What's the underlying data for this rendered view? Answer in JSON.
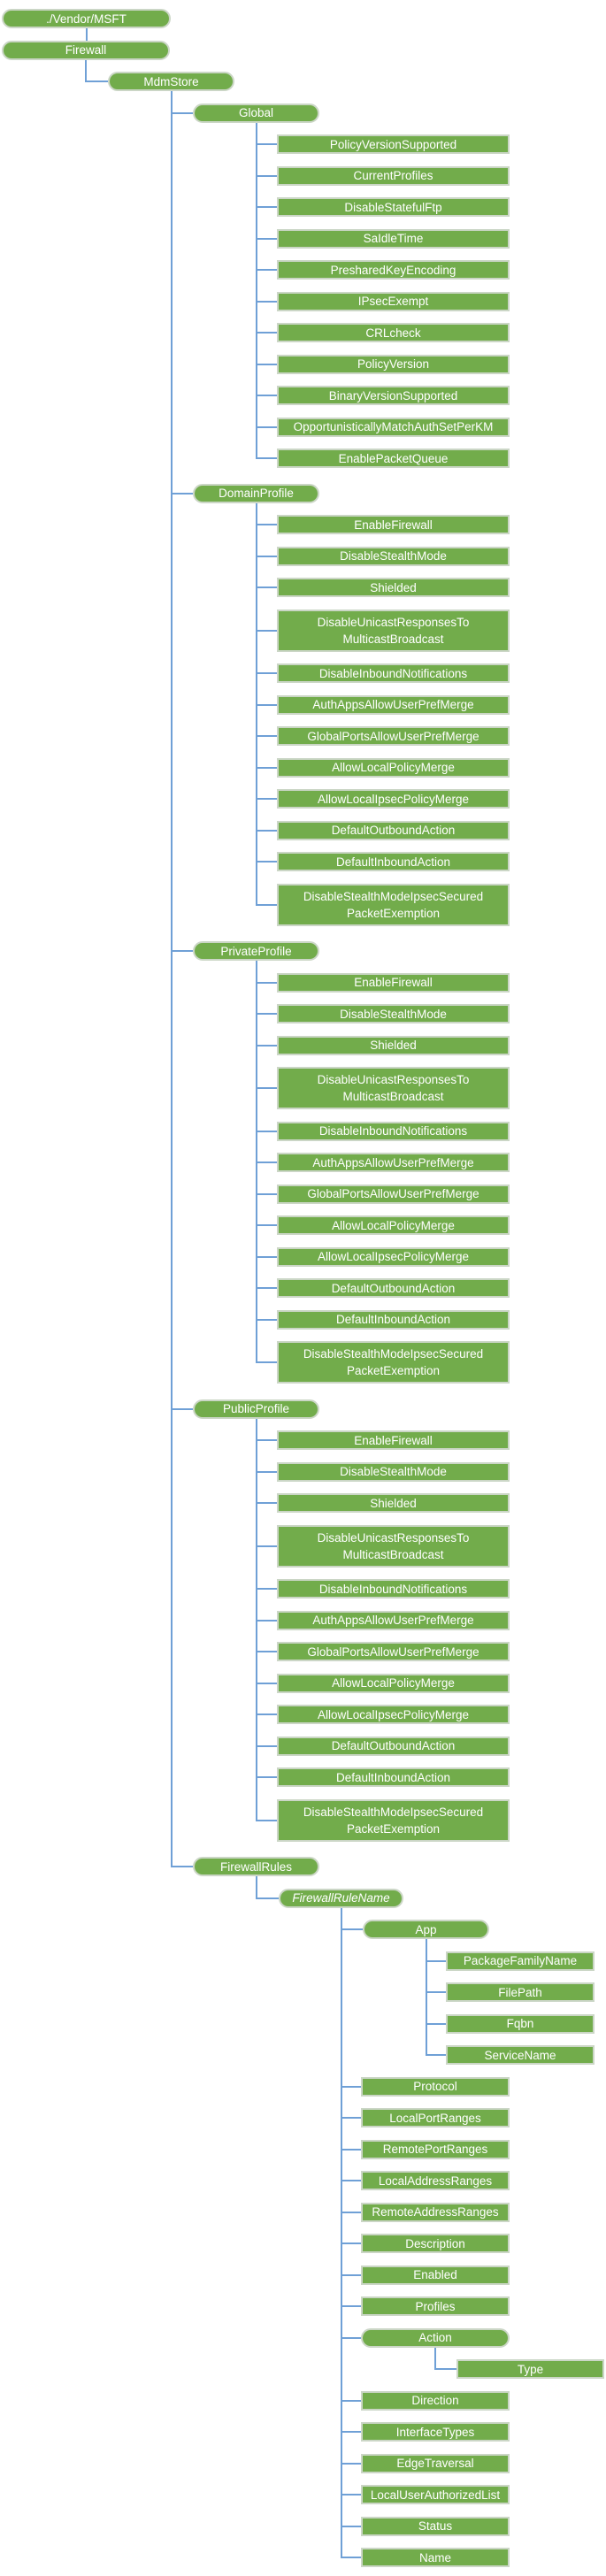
{
  "diagram_type": "csp-node-tree",
  "colors": {
    "node_fill": "#72AC4B",
    "node_border": "#CBD6C6",
    "node_text": "#FFFFFF",
    "connector": "#6FA0D6"
  },
  "tree": {
    "label": "./Vendor/MSFT",
    "shape": "pill",
    "children": [
      {
        "label": "Firewall",
        "shape": "pill",
        "children": [
          {
            "label": "MdmStore",
            "shape": "pill",
            "children": [
              {
                "label": "Global",
                "shape": "pill",
                "children": [
                  {
                    "label": "PolicyVersionSupported",
                    "shape": "rect"
                  },
                  {
                    "label": "CurrentProfiles",
                    "shape": "rect"
                  },
                  {
                    "label": "DisableStatefulFtp",
                    "shape": "rect"
                  },
                  {
                    "label": "SaIdleTime",
                    "shape": "rect"
                  },
                  {
                    "label": "PresharedKeyEncoding",
                    "shape": "rect"
                  },
                  {
                    "label": "IPsecExempt",
                    "shape": "rect"
                  },
                  {
                    "label": "CRLcheck",
                    "shape": "rect"
                  },
                  {
                    "label": "PolicyVersion",
                    "shape": "rect"
                  },
                  {
                    "label": "BinaryVersionSupported",
                    "shape": "rect"
                  },
                  {
                    "label": "OpportunisticallyMatchAuthSetPerKM",
                    "shape": "rect"
                  },
                  {
                    "label": "EnablePacketQueue",
                    "shape": "rect"
                  }
                ]
              },
              {
                "label": "DomainProfile",
                "shape": "pill",
                "children": [
                  {
                    "label": "EnableFirewall",
                    "shape": "rect"
                  },
                  {
                    "label": "DisableStealthMode",
                    "shape": "rect"
                  },
                  {
                    "label": "Shielded",
                    "shape": "rect"
                  },
                  {
                    "label": "DisableUnicastResponsesTo\nMulticastBroadcast",
                    "shape": "rect"
                  },
                  {
                    "label": "DisableInboundNotifications",
                    "shape": "rect"
                  },
                  {
                    "label": "AuthAppsAllowUserPrefMerge",
                    "shape": "rect"
                  },
                  {
                    "label": "GlobalPortsAllowUserPrefMerge",
                    "shape": "rect"
                  },
                  {
                    "label": "AllowLocalPolicyMerge",
                    "shape": "rect"
                  },
                  {
                    "label": "AllowLocalIpsecPolicyMerge",
                    "shape": "rect"
                  },
                  {
                    "label": "DefaultOutboundAction",
                    "shape": "rect"
                  },
                  {
                    "label": "DefaultInboundAction",
                    "shape": "rect"
                  },
                  {
                    "label": "DisableStealthModeIpsecSecured\nPacketExemption",
                    "shape": "rect"
                  }
                ]
              },
              {
                "label": "PrivateProfile",
                "shape": "pill",
                "children": [
                  {
                    "label": "EnableFirewall",
                    "shape": "rect"
                  },
                  {
                    "label": "DisableStealthMode",
                    "shape": "rect"
                  },
                  {
                    "label": "Shielded",
                    "shape": "rect"
                  },
                  {
                    "label": "DisableUnicastResponsesTo\nMulticastBroadcast",
                    "shape": "rect"
                  },
                  {
                    "label": "DisableInboundNotifications",
                    "shape": "rect"
                  },
                  {
                    "label": "AuthAppsAllowUserPrefMerge",
                    "shape": "rect"
                  },
                  {
                    "label": "GlobalPortsAllowUserPrefMerge",
                    "shape": "rect"
                  },
                  {
                    "label": "AllowLocalPolicyMerge",
                    "shape": "rect"
                  },
                  {
                    "label": "AllowLocalIpsecPolicyMerge",
                    "shape": "rect"
                  },
                  {
                    "label": "DefaultOutboundAction",
                    "shape": "rect"
                  },
                  {
                    "label": "DefaultInboundAction",
                    "shape": "rect"
                  },
                  {
                    "label": "DisableStealthModeIpsecSecured\nPacketExemption",
                    "shape": "rect"
                  }
                ]
              },
              {
                "label": "PublicProfile",
                "shape": "pill",
                "children": [
                  {
                    "label": "EnableFirewall",
                    "shape": "rect"
                  },
                  {
                    "label": "DisableStealthMode",
                    "shape": "rect"
                  },
                  {
                    "label": "Shielded",
                    "shape": "rect"
                  },
                  {
                    "label": "DisableUnicastResponsesTo\nMulticastBroadcast",
                    "shape": "rect"
                  },
                  {
                    "label": "DisableInboundNotifications",
                    "shape": "rect"
                  },
                  {
                    "label": "AuthAppsAllowUserPrefMerge",
                    "shape": "rect"
                  },
                  {
                    "label": "GlobalPortsAllowUserPrefMerge",
                    "shape": "rect"
                  },
                  {
                    "label": "AllowLocalPolicyMerge",
                    "shape": "rect"
                  },
                  {
                    "label": "AllowLocalIpsecPolicyMerge",
                    "shape": "rect"
                  },
                  {
                    "label": "DefaultOutboundAction",
                    "shape": "rect"
                  },
                  {
                    "label": "DefaultInboundAction",
                    "shape": "rect"
                  },
                  {
                    "label": "DisableStealthModeIpsecSecured\nPacketExemption",
                    "shape": "rect"
                  }
                ]
              },
              {
                "label": "FirewallRules",
                "shape": "pill",
                "children": [
                  {
                    "label": "FirewallRuleName",
                    "shape": "pill",
                    "italic": true,
                    "children": [
                      {
                        "label": "App",
                        "shape": "pill",
                        "children": [
                          {
                            "label": "PackageFamilyName",
                            "shape": "rect"
                          },
                          {
                            "label": "FilePath",
                            "shape": "rect"
                          },
                          {
                            "label": "Fqbn",
                            "shape": "rect"
                          },
                          {
                            "label": "ServiceName",
                            "shape": "rect"
                          }
                        ]
                      },
                      {
                        "label": "Protocol",
                        "shape": "rect"
                      },
                      {
                        "label": "LocalPortRanges",
                        "shape": "rect"
                      },
                      {
                        "label": "RemotePortRanges",
                        "shape": "rect"
                      },
                      {
                        "label": "LocalAddressRanges",
                        "shape": "rect"
                      },
                      {
                        "label": "RemoteAddressRanges",
                        "shape": "rect"
                      },
                      {
                        "label": "Description",
                        "shape": "rect"
                      },
                      {
                        "label": "Enabled",
                        "shape": "rect"
                      },
                      {
                        "label": "Profiles",
                        "shape": "rect"
                      },
                      {
                        "label": "Action",
                        "shape": "pill",
                        "children": [
                          {
                            "label": "Type",
                            "shape": "rect"
                          }
                        ]
                      },
                      {
                        "label": "Direction",
                        "shape": "rect"
                      },
                      {
                        "label": "InterfaceTypes",
                        "shape": "rect"
                      },
                      {
                        "label": "EdgeTraversal",
                        "shape": "rect"
                      },
                      {
                        "label": "LocalUserAuthorizedList",
                        "shape": "rect"
                      },
                      {
                        "label": "Status",
                        "shape": "rect"
                      },
                      {
                        "label": "Name",
                        "shape": "rect"
                      }
                    ]
                  }
                ]
              }
            ]
          }
        ]
      }
    ]
  }
}
